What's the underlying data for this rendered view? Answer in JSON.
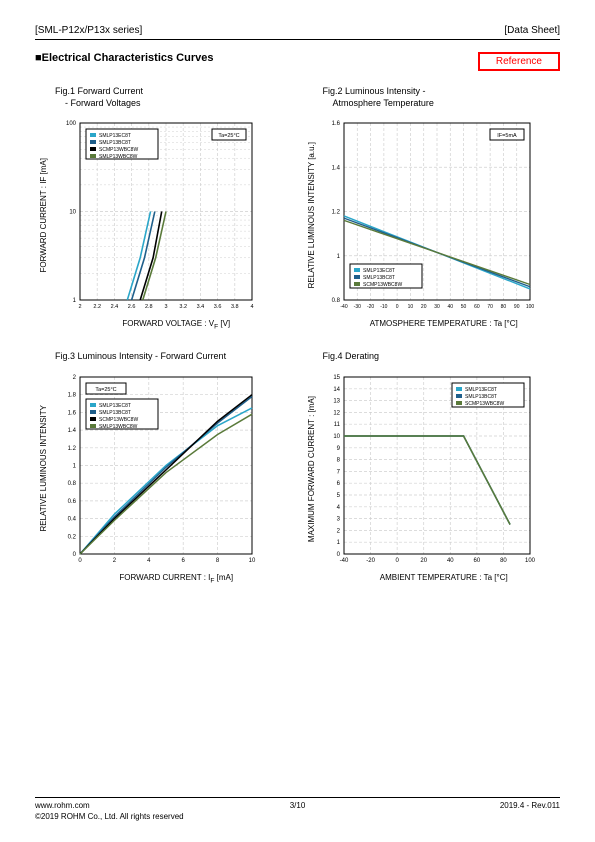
{
  "header": {
    "left": "[SML-P12x/P13x series]",
    "right": "[Data Sheet]"
  },
  "section_title": "■Electrical Characteristics Curves",
  "reference_label": "Reference",
  "colors": {
    "grid": "#d0d0d0",
    "axis": "#000000",
    "series1": "#2aa6c9",
    "series2": "#1f5f8b",
    "series3": "#000000",
    "series4": "#5a7a3a",
    "bg": "#ffffff"
  },
  "chart1": {
    "title": "Fig.1 Forward Current\n - Forward Voltages",
    "ylabel": "FORWARD CURRENT : IF [mA]",
    "xlabel": "FORWARD VOLTAGE : VF [V]",
    "xlim": [
      2,
      4
    ],
    "ylim_log": [
      1,
      100
    ],
    "xticks": [
      2,
      2.2,
      2.4,
      2.6,
      2.8,
      3,
      3.2,
      3.4,
      3.6,
      3.8,
      4
    ],
    "yticks": [
      1,
      10,
      100
    ],
    "annot": "Ta=25°C",
    "legend": [
      "SMLP13EC8T",
      "SMLP13BC8T",
      "SCMP13WBC8W",
      "SMLP13WBC8W"
    ],
    "series": [
      {
        "color": "#2aa6c9",
        "pts": [
          [
            2.55,
            1
          ],
          [
            2.7,
            3
          ],
          [
            2.82,
            10
          ]
        ]
      },
      {
        "color": "#1f5f8b",
        "pts": [
          [
            2.6,
            1
          ],
          [
            2.75,
            3
          ],
          [
            2.87,
            10
          ]
        ]
      },
      {
        "color": "#000000",
        "pts": [
          [
            2.7,
            1
          ],
          [
            2.85,
            3
          ],
          [
            2.95,
            10
          ]
        ]
      },
      {
        "color": "#5a7a3a",
        "pts": [
          [
            2.73,
            1
          ],
          [
            2.88,
            3
          ],
          [
            3.0,
            10
          ]
        ]
      }
    ]
  },
  "chart2": {
    "title": "Fig.2 Luminous Intensity -\n Atmosphere Temperature",
    "ylabel": "RELATIVE LUMINOUS INTENSITY [a.u.]",
    "xlabel": "ATMOSPHERE TEMPERATURE : Ta [°C]",
    "xlim": [
      -40,
      100
    ],
    "ylim": [
      0.8,
      1.6
    ],
    "xticks": [
      -40,
      -30,
      -20,
      -10,
      0,
      10,
      20,
      30,
      40,
      50,
      60,
      70,
      80,
      90,
      100
    ],
    "yticks": [
      0.8,
      1,
      1.2,
      1.4,
      1.6
    ],
    "annot": "IF=5mA",
    "legend": [
      "SMLP13EC8T",
      "SMLP13BC8T",
      "SCMP13WBC8W"
    ],
    "series": [
      {
        "color": "#2aa6c9",
        "pts": [
          [
            -40,
            1.18
          ],
          [
            100,
            0.85
          ]
        ]
      },
      {
        "color": "#1f5f8b",
        "pts": [
          [
            -40,
            1.17
          ],
          [
            100,
            0.86
          ]
        ]
      },
      {
        "color": "#5a7a3a",
        "pts": [
          [
            -40,
            1.16
          ],
          [
            100,
            0.87
          ]
        ]
      }
    ]
  },
  "chart3": {
    "title": "Fig.3 Luminous Intensity - Forward Current",
    "ylabel": "RELATIVE LUMINOUS INTENSITY",
    "xlabel": "FORWARD CURRENT : IF [mA]",
    "xlim": [
      0,
      10
    ],
    "ylim": [
      0,
      2
    ],
    "xticks": [
      0,
      2,
      4,
      6,
      8,
      10
    ],
    "yticks": [
      0,
      0.2,
      0.4,
      0.6,
      0.8,
      1,
      1.2,
      1.4,
      1.6,
      1.8,
      2
    ],
    "annot": "Ta=25°C",
    "legend": [
      "SMLP13EC8T",
      "SMLP13BC8T",
      "SCMP13WBC8W",
      "SMLP13WBC8W"
    ],
    "series": [
      {
        "color": "#2aa6c9",
        "pts": [
          [
            0,
            0
          ],
          [
            2,
            0.45
          ],
          [
            5,
            1.0
          ],
          [
            8,
            1.45
          ],
          [
            10,
            1.65
          ]
        ]
      },
      {
        "color": "#1f5f8b",
        "pts": [
          [
            0,
            0
          ],
          [
            2,
            0.42
          ],
          [
            5,
            0.98
          ],
          [
            8,
            1.48
          ],
          [
            10,
            1.78
          ]
        ]
      },
      {
        "color": "#000000",
        "pts": [
          [
            0,
            0
          ],
          [
            2,
            0.4
          ],
          [
            5,
            0.95
          ],
          [
            8,
            1.5
          ],
          [
            10,
            1.8
          ]
        ]
      },
      {
        "color": "#5a7a3a",
        "pts": [
          [
            0,
            0
          ],
          [
            2,
            0.38
          ],
          [
            5,
            0.92
          ],
          [
            8,
            1.35
          ],
          [
            10,
            1.58
          ]
        ]
      }
    ]
  },
  "chart4": {
    "title": "Fig.4 Derating",
    "ylabel": "MAXIMUM FORWARD CURRENT : [mA]",
    "xlabel": "AMBIENT TEMPERATURE : Ta [°C]",
    "xlim": [
      -40,
      100
    ],
    "ylim": [
      0,
      15
    ],
    "xticks": [
      -40,
      -20,
      0,
      20,
      40,
      60,
      80,
      100
    ],
    "yticks": [
      0,
      1,
      2,
      3,
      4,
      5,
      6,
      7,
      8,
      9,
      10,
      11,
      12,
      13,
      14,
      15
    ],
    "legend": [
      "SMLP13EC8T",
      "SMLP13BC8T",
      "SCMP13WBC8W"
    ],
    "series": [
      {
        "color": "#000000",
        "pts": [
          [
            -40,
            10
          ],
          [
            50,
            10
          ],
          [
            85,
            2.5
          ]
        ]
      },
      {
        "color": "#2aa6c9",
        "pts": [
          [
            -40,
            10
          ],
          [
            50,
            10
          ],
          [
            85,
            2.5
          ]
        ]
      },
      {
        "color": "#5a7a3a",
        "pts": [
          [
            -40,
            10
          ],
          [
            50,
            10
          ],
          [
            85,
            2.5
          ]
        ]
      }
    ]
  },
  "footer": {
    "url": "www.rohm.com",
    "copyright": "©2019 ROHM Co., Ltd. All rights reserved",
    "page": "3/10",
    "rev": "2019.4 - Rev.011"
  }
}
